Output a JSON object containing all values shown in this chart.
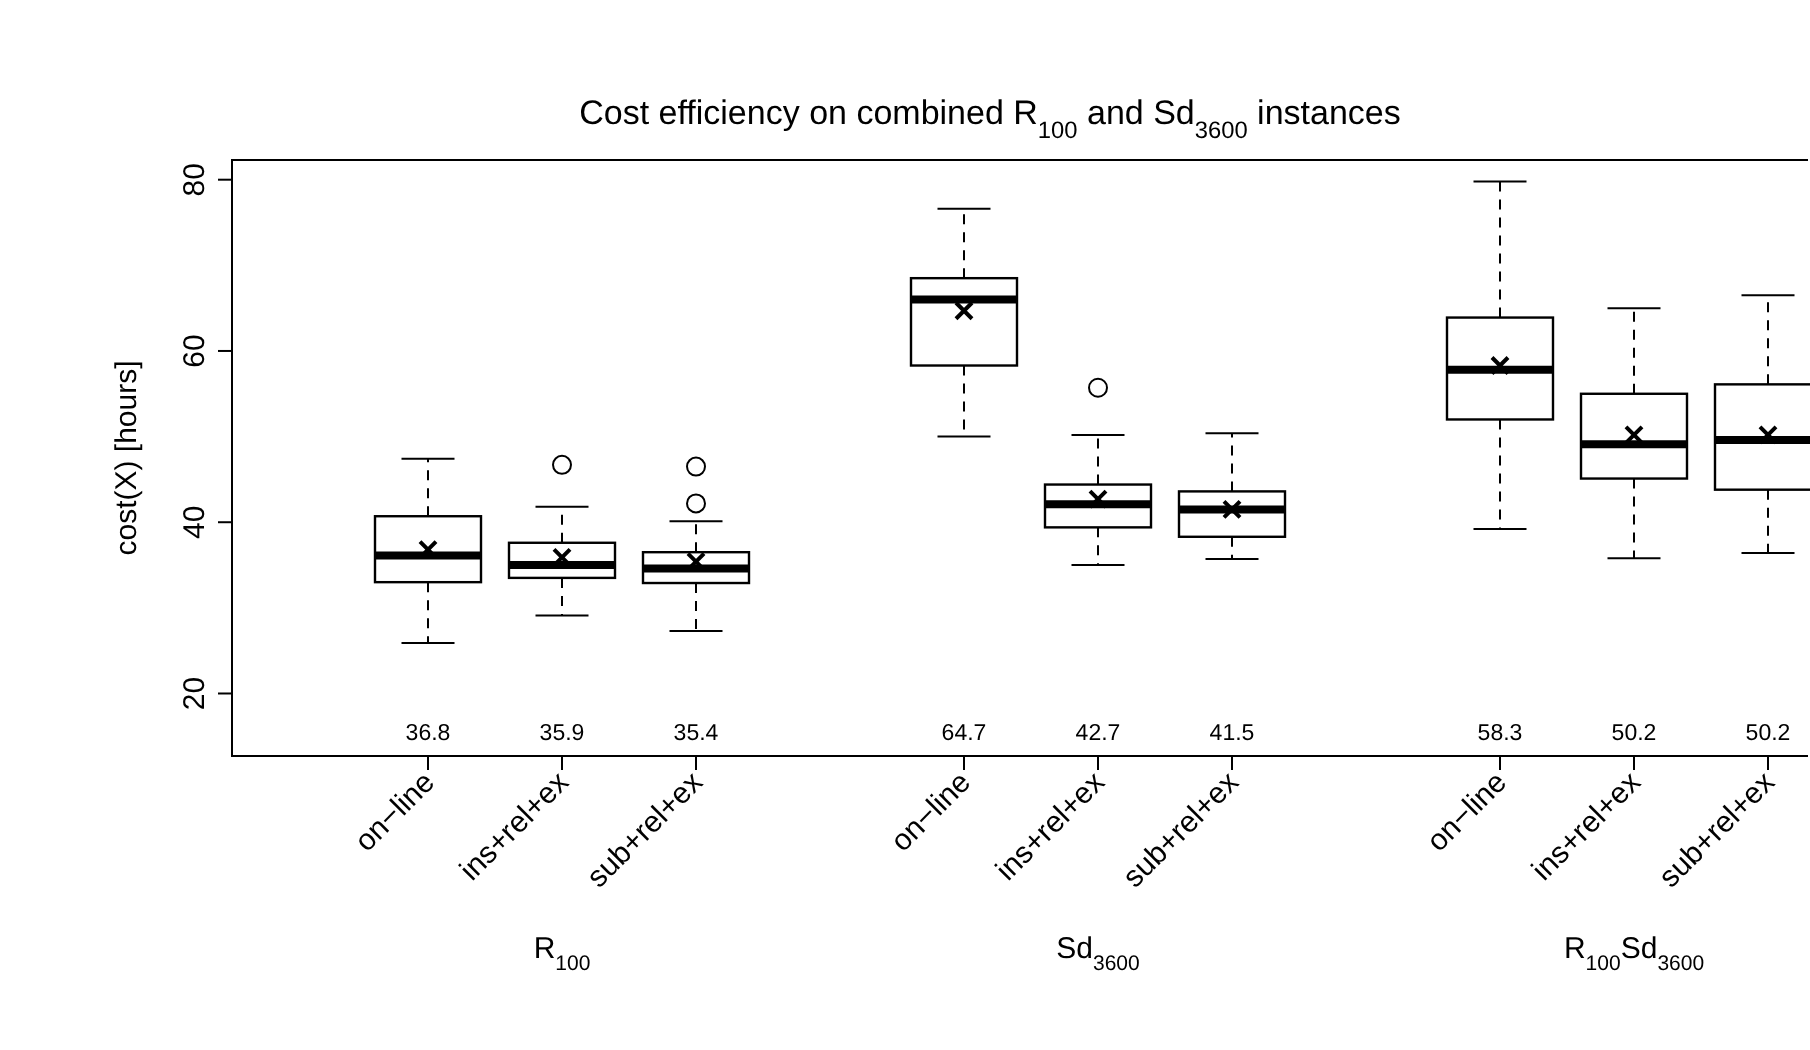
{
  "chart_data": {
    "type": "box",
    "title": "Cost efficiency on combined R$_{100}$ and Sd$_{3600}$ instances",
    "ylabel": "cost(X) [hours]",
    "categories": [
      "on−line",
      "ins+rel+ex",
      "sub+rel+ex",
      null,
      "on−line",
      "ins+rel+ex",
      "sub+rel+ex",
      null,
      "on−line",
      "ins+rel+ex",
      "sub+rel+ex"
    ],
    "boxes": [
      {
        "low": 25.9,
        "q1": 33.0,
        "median": 36.1,
        "q3": 40.7,
        "high": 47.4,
        "mean": 36.8
      },
      {
        "low": 29.1,
        "q1": 33.5,
        "median": 35.0,
        "q3": 37.6,
        "high": 41.8,
        "mean": 35.9,
        "outliers": [
          46.7
        ]
      },
      {
        "low": 27.3,
        "q1": 32.9,
        "median": 34.6,
        "q3": 36.5,
        "high": 40.1,
        "mean": 35.4,
        "outliers": [
          42.2,
          46.5
        ]
      },
      null,
      {
        "low": 50.0,
        "q1": 58.3,
        "median": 66.0,
        "q3": 68.5,
        "high": 76.6,
        "mean": 64.7
      },
      {
        "low": 35.0,
        "q1": 39.4,
        "median": 42.1,
        "q3": 44.4,
        "high": 50.2,
        "mean": 42.7,
        "outliers": [
          55.7
        ]
      },
      {
        "low": 35.7,
        "q1": 38.3,
        "median": 41.5,
        "q3": 43.6,
        "high": 50.4,
        "mean": 41.5
      },
      null,
      {
        "low": 39.2,
        "q1": 52.0,
        "median": 57.8,
        "q3": 63.9,
        "high": 79.8,
        "mean": 58.3
      },
      {
        "low": 35.8,
        "q1": 45.1,
        "median": 49.1,
        "q3": 55.0,
        "high": 65.0,
        "mean": 50.2
      },
      {
        "low": 36.4,
        "q1": 43.8,
        "median": 49.6,
        "q3": 56.1,
        "high": 66.5,
        "mean": 50.2
      }
    ],
    "value_labels": [
      "36.8",
      "35.9",
      "35.4",
      null,
      "64.7",
      "42.7",
      "41.5",
      null,
      "58.3",
      "50.2",
      "50.2"
    ],
    "annotations": [
      "R$_{100}$",
      "Sd$_{3600}$",
      "R$_{100}$Sd$_{3600}$"
    ],
    "color": "#ffffff",
    "ylim": [
      12.7,
      82.3
    ],
    "yticks": [
      20,
      40,
      60,
      80
    ],
    "grid": false
  }
}
